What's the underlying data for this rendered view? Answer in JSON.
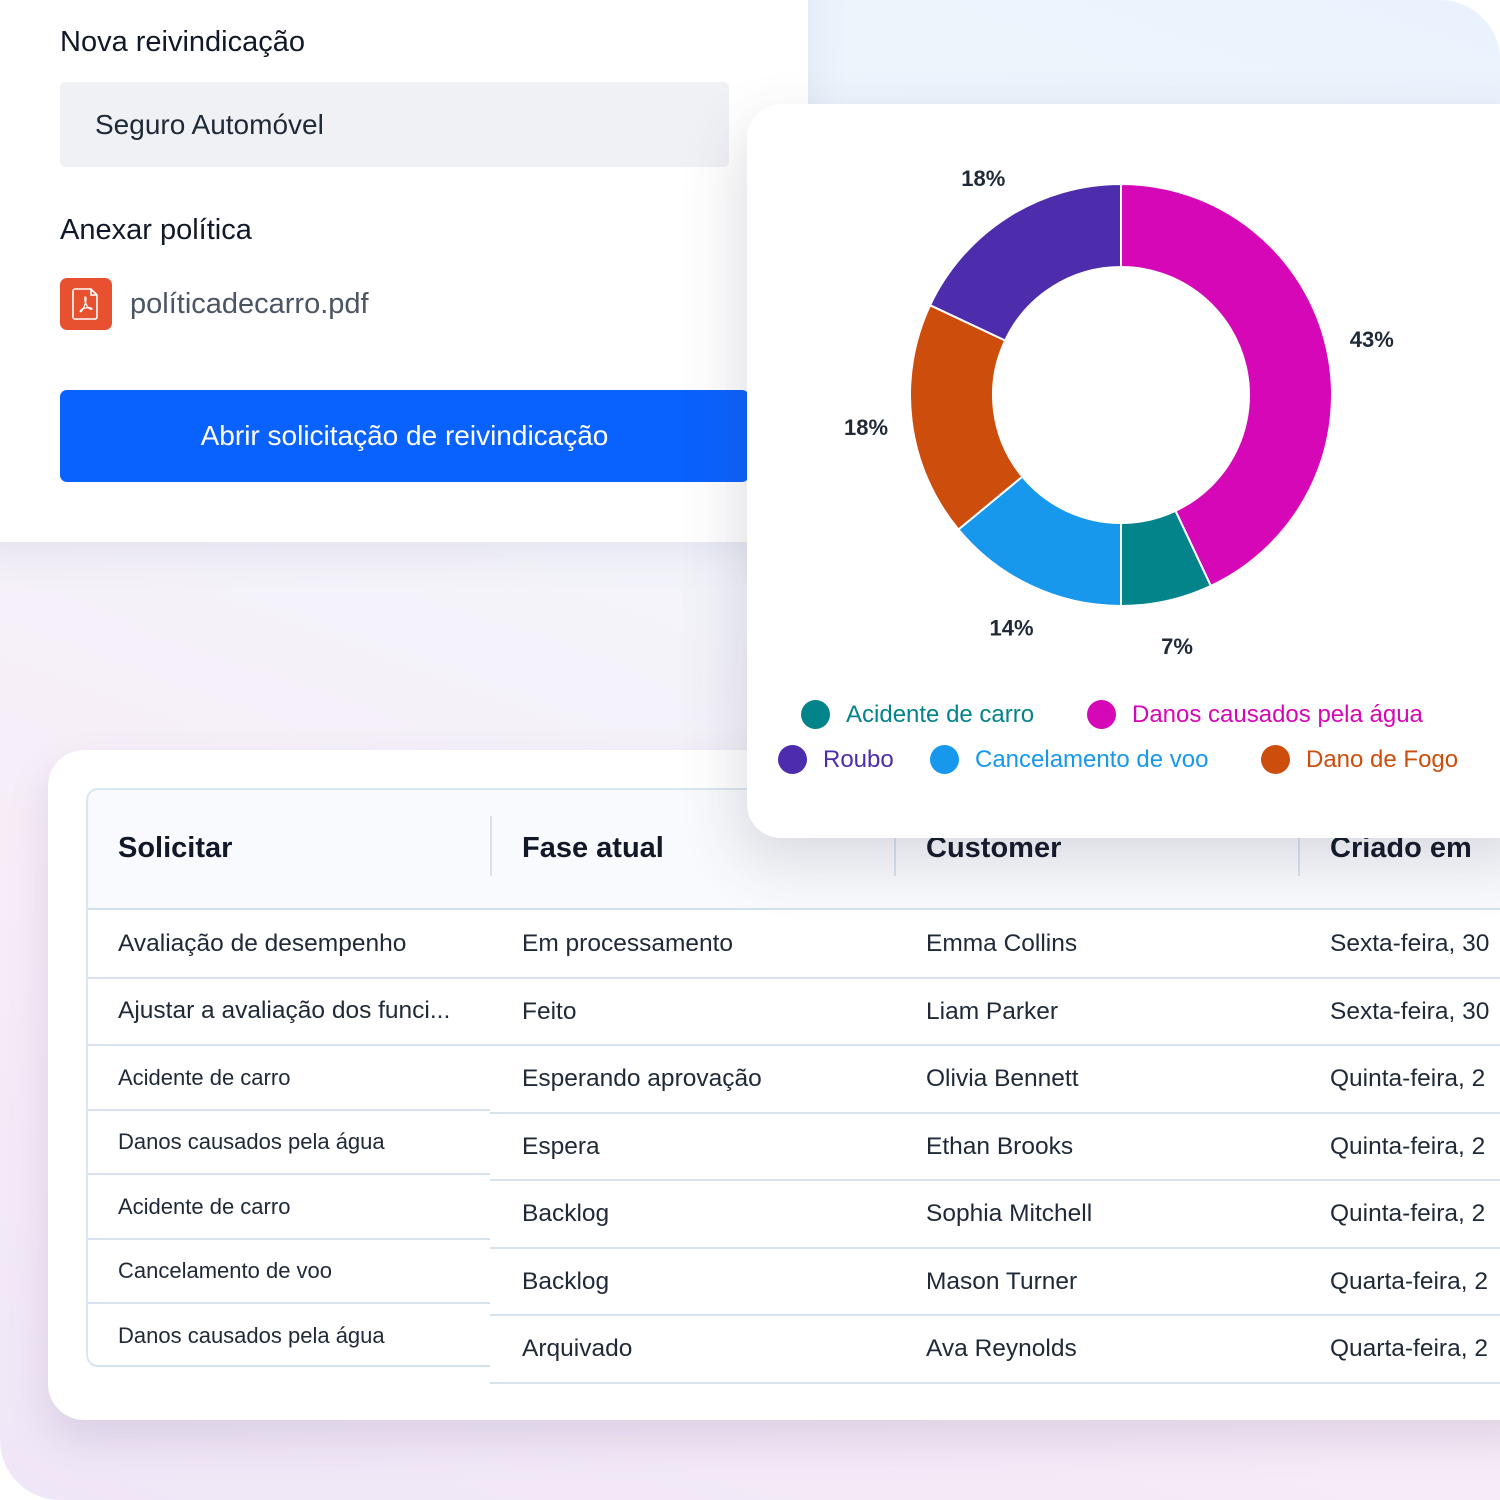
{
  "form": {
    "title": "Nova reivindicação",
    "insurance_select_value": "Seguro Automóvel",
    "attach_label": "Anexar política",
    "attached_file": "políticadecarro.pdf",
    "file_icon": "pdf-file-icon",
    "submit_label": "Abrir solicitação de reivindicação"
  },
  "colors": {
    "primary_button": "#0a62fe",
    "pdf_icon": "#e8512f"
  },
  "chart_data": {
    "type": "pie",
    "variant": "donut",
    "title": "",
    "unit": "%",
    "slices": [
      {
        "name": "Danos causados pela água",
        "value": 43,
        "label": "43%",
        "color": "#d507b6"
      },
      {
        "name": "Acidente de carro",
        "value": 7,
        "label": "7%",
        "color": "#03838a"
      },
      {
        "name": "Cancelamento de voo",
        "value": 14,
        "label": "14%",
        "color": "#1798ec"
      },
      {
        "name": "Dano de Fogo",
        "value": 18,
        "label": "18%",
        "color": "#cd4e0c"
      },
      {
        "name": "Roubo",
        "value": 18,
        "label": "18%",
        "color": "#4d2dab"
      }
    ],
    "legend": [
      {
        "label": "Acidente de carro",
        "color": "#03838a"
      },
      {
        "label": "Danos causados pela água",
        "color": "#d507b6"
      },
      {
        "label": "Roubo",
        "color": "#4d2dab"
      },
      {
        "label": "Cancelamento de voo",
        "color": "#1798ec"
      },
      {
        "label": "Dano de Fogo",
        "color": "#cd4e0c"
      }
    ],
    "legend_position": "bottom"
  },
  "table": {
    "columns": [
      "Solicitar",
      "Fase atual",
      "Customer",
      "Criado em"
    ],
    "rows": [
      {
        "request": "Avaliação de desempenho",
        "phase": "Em processamento",
        "customer": "Emma Collins",
        "created": "Sexta-feira, 30"
      },
      {
        "request": "Ajustar a avaliação dos funci...",
        "phase": "Feito",
        "customer": "Liam Parker",
        "created": "Sexta-feira, 30"
      },
      {
        "request": "Acidente de carro",
        "phase": "Esperando aprovação",
        "customer": "Olivia Bennett",
        "created": "Quinta-feira, 2"
      },
      {
        "request": "Danos causados pela água",
        "phase": "Espera",
        "customer": "Ethan Brooks",
        "created": "Quinta-feira, 2"
      },
      {
        "request": "Acidente de carro",
        "phase": "Backlog",
        "customer": "Sophia Mitchell",
        "created": "Quinta-feira, 2"
      },
      {
        "request": "Cancelamento de voo",
        "phase": "Backlog",
        "customer": "Mason Turner",
        "created": "Quarta-feira, 2"
      },
      {
        "request": "Danos causados pela água",
        "phase": "Arquivado",
        "customer": "Ava Reynolds",
        "created": "Quarta-feira, 2"
      }
    ]
  }
}
